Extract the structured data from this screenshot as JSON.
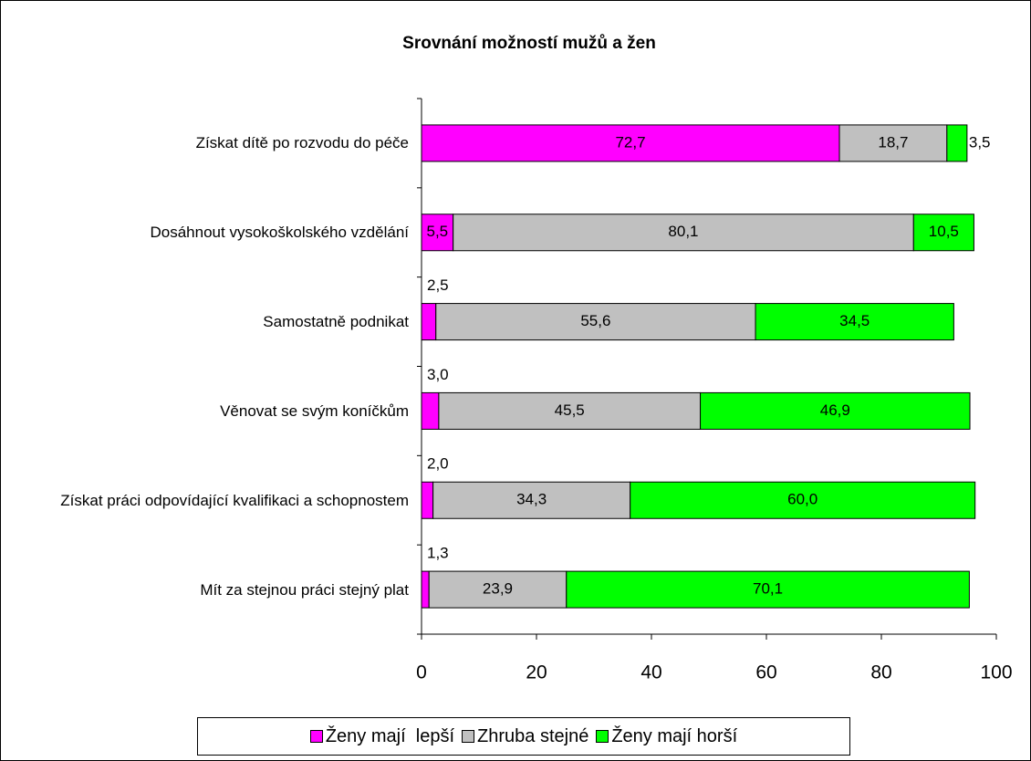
{
  "chart_data": {
    "type": "stacked-bar-horizontal",
    "title": "Srovnání možností mužů a žen",
    "categories": [
      "Získat dítě  po rozvodu do péče",
      "Dosáhnout vysokoškolského vzdělání",
      "Samostatně podnikat",
      "Věnovat se svým koníčkům",
      "Získat práci odpovídající kvalifikaci a schopnostem",
      "Mít za stejnou práci stejný plat"
    ],
    "series": [
      {
        "name": "Ženy mají  lepší",
        "color": "#ff00ff",
        "values": [
          72.7,
          5.5,
          2.5,
          3.0,
          2.0,
          1.3
        ],
        "value_labels": [
          "72,7",
          "5,5",
          "2,5",
          "3,0",
          "2,0",
          "1,3"
        ]
      },
      {
        "name": "Zhruba stejné",
        "color": "#c0c0c0",
        "values": [
          18.7,
          80.1,
          55.6,
          45.5,
          34.3,
          23.9
        ],
        "value_labels": [
          "18,7",
          "80,1",
          "55,6",
          "45,5",
          "34,3",
          "23,9"
        ]
      },
      {
        "name": "Ženy mají horší",
        "color": "#00ff00",
        "values": [
          3.5,
          10.5,
          34.5,
          46.9,
          60.0,
          70.1
        ],
        "value_labels": [
          "3,5",
          "10,5",
          "34,5",
          "46,9",
          "60,0",
          "70,1"
        ]
      }
    ],
    "xlim": [
      0,
      100
    ],
    "xticks": [
      0,
      20,
      40,
      60,
      80,
      100
    ],
    "legend": "bottom"
  }
}
